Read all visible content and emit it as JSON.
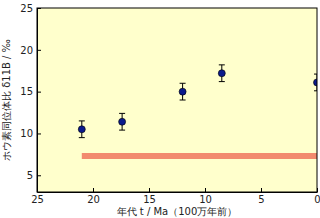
{
  "chart_data": {
    "type": "scatter",
    "x_label": "年代 t / Ma（100万年前）",
    "y_label": "ホウ素同位体比 δ11B / ‰",
    "xlim": [
      25,
      0
    ],
    "xticks": [
      25,
      20,
      15,
      10,
      5,
      0
    ],
    "ylim": [
      3,
      25
    ],
    "yticks": [
      5,
      10,
      15,
      20,
      25
    ],
    "grid": false,
    "series": [
      {
        "color": "#0a1a8c",
        "marker": "circle",
        "x": [
          21,
          17.4,
          12,
          8.5,
          0
        ],
        "values": [
          10.5,
          11.4,
          15,
          17.2,
          16.1
        ],
        "errors": [
          1,
          1,
          1,
          1,
          1
        ]
      }
    ],
    "reference_line": {
      "y": 7.3,
      "x": [
        21,
        0
      ],
      "color": "#f28a6e"
    }
  }
}
